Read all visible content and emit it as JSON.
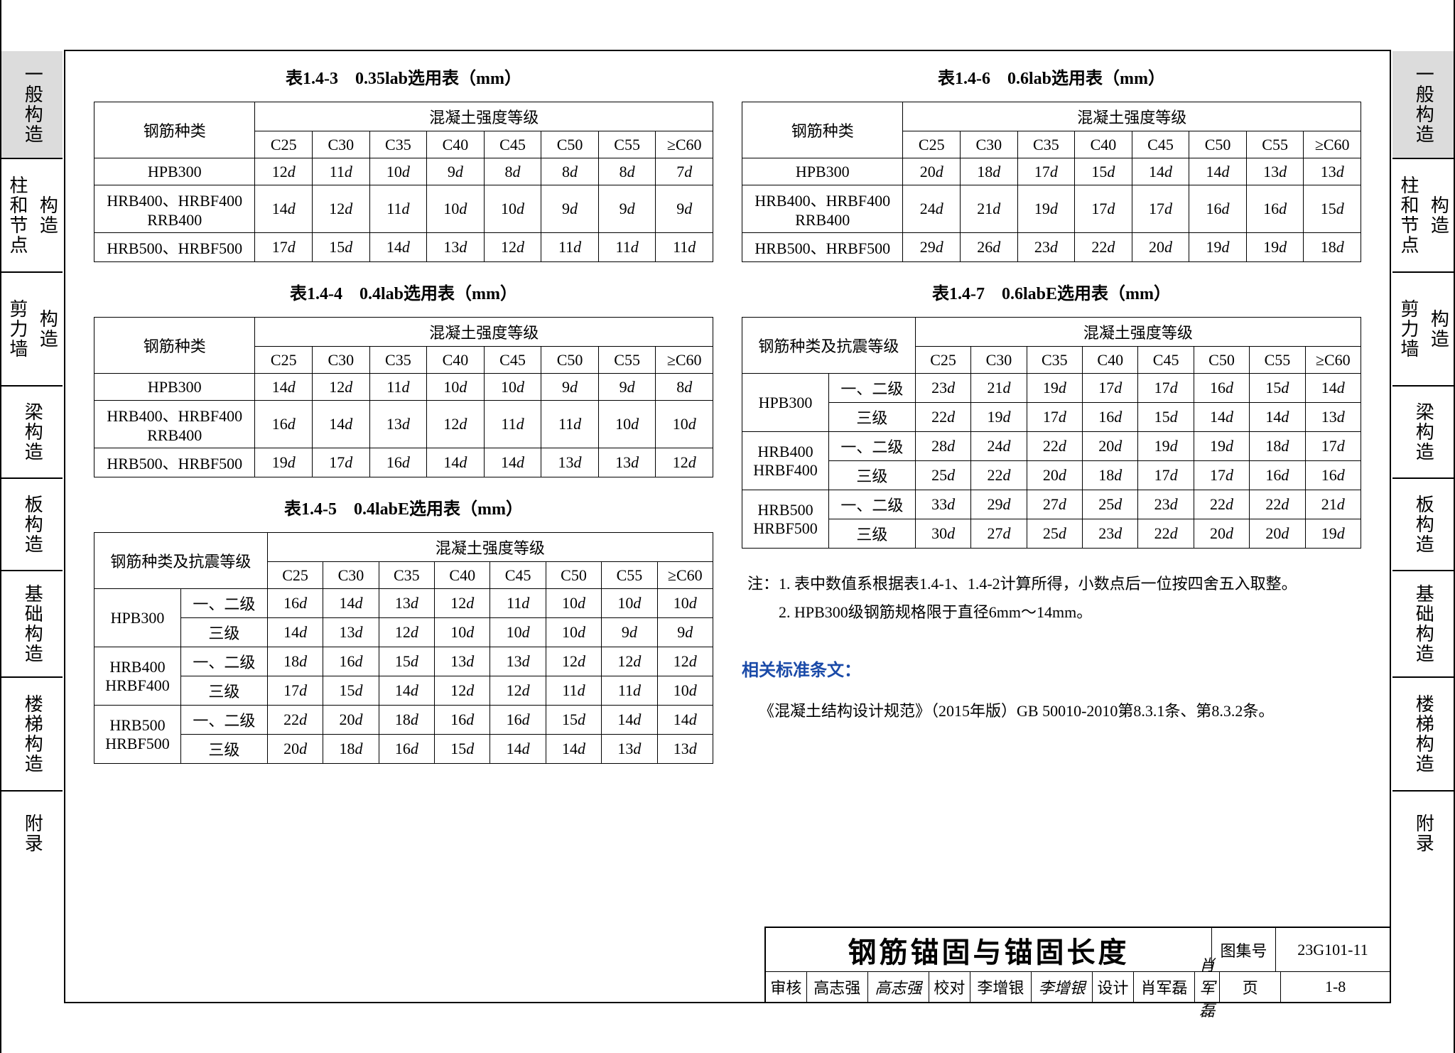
{
  "tabs_left": [
    "一般构造",
    "柱和节点 构造",
    "剪力墙 构造",
    "梁构造",
    "板构造",
    "基础构造",
    "楼梯构造",
    "附录"
  ],
  "tabs_right": [
    "一般构造",
    "柱和节点 构造",
    "剪力墙 构造",
    "梁构造",
    "板构造",
    "基础构造",
    "楼梯构造",
    "附录"
  ],
  "tab_heights": [
    150,
    160,
    160,
    130,
    130,
    150,
    160,
    120
  ],
  "concrete_grades": [
    "C25",
    "C30",
    "C35",
    "C40",
    "C45",
    "C50",
    "C55",
    "≥C60"
  ],
  "header_type": "钢筋种类",
  "header_type2": "钢筋种类及抗震等级",
  "header_grade": "混凝土强度等级",
  "captions": {
    "t143": "表1.4-3　0.35lab选用表（mm）",
    "t144": "表1.4-4　0.4lab选用表（mm）",
    "t145": "表1.4-5　0.4labE选用表（mm）",
    "t146": "表1.4-6　0.6lab选用表（mm）",
    "t147": "表1.4-7　0.6labE选用表（mm）"
  },
  "rebar_types_simple": [
    "HPB300",
    "HRB400、HRBF400\nRRB400",
    "HRB500、HRBF500"
  ],
  "seismic_levels": [
    "一、二级",
    "三级"
  ],
  "rebar_groups": [
    "HPB300",
    "HRB400\nHRBF400",
    "HRB500\nHRBF500"
  ],
  "t143": [
    [
      "12d",
      "11d",
      "10d",
      "9d",
      "8d",
      "8d",
      "8d",
      "7d"
    ],
    [
      "14d",
      "12d",
      "11d",
      "10d",
      "10d",
      "9d",
      "9d",
      "9d"
    ],
    [
      "17d",
      "15d",
      "14d",
      "13d",
      "12d",
      "11d",
      "11d",
      "11d"
    ]
  ],
  "t144": [
    [
      "14d",
      "12d",
      "11d",
      "10d",
      "10d",
      "9d",
      "9d",
      "8d"
    ],
    [
      "16d",
      "14d",
      "13d",
      "12d",
      "11d",
      "11d",
      "10d",
      "10d"
    ],
    [
      "19d",
      "17d",
      "16d",
      "14d",
      "14d",
      "13d",
      "13d",
      "12d"
    ]
  ],
  "t146": [
    [
      "20d",
      "18d",
      "17d",
      "15d",
      "14d",
      "14d",
      "13d",
      "13d"
    ],
    [
      "24d",
      "21d",
      "19d",
      "17d",
      "17d",
      "16d",
      "16d",
      "15d"
    ],
    [
      "29d",
      "26d",
      "23d",
      "22d",
      "20d",
      "19d",
      "19d",
      "18d"
    ]
  ],
  "t145": [
    [
      "16d",
      "14d",
      "13d",
      "12d",
      "11d",
      "10d",
      "10d",
      "10d"
    ],
    [
      "14d",
      "13d",
      "12d",
      "10d",
      "10d",
      "10d",
      "9d",
      "9d"
    ],
    [
      "18d",
      "16d",
      "15d",
      "13d",
      "13d",
      "12d",
      "12d",
      "12d"
    ],
    [
      "17d",
      "15d",
      "14d",
      "12d",
      "12d",
      "11d",
      "11d",
      "10d"
    ],
    [
      "22d",
      "20d",
      "18d",
      "16d",
      "16d",
      "15d",
      "14d",
      "14d"
    ],
    [
      "20d",
      "18d",
      "16d",
      "15d",
      "14d",
      "14d",
      "13d",
      "13d"
    ]
  ],
  "t147": [
    [
      "23d",
      "21d",
      "19d",
      "17d",
      "17d",
      "16d",
      "15d",
      "14d"
    ],
    [
      "22d",
      "19d",
      "17d",
      "16d",
      "15d",
      "14d",
      "14d",
      "13d"
    ],
    [
      "28d",
      "24d",
      "22d",
      "20d",
      "19d",
      "19d",
      "18d",
      "17d"
    ],
    [
      "25d",
      "22d",
      "20d",
      "18d",
      "17d",
      "17d",
      "16d",
      "16d"
    ],
    [
      "33d",
      "29d",
      "27d",
      "25d",
      "23d",
      "22d",
      "22d",
      "21d"
    ],
    [
      "30d",
      "27d",
      "25d",
      "23d",
      "22d",
      "20d",
      "20d",
      "19d"
    ]
  ],
  "notes": [
    "注：1. 表中数值系根据表1.4-1、1.4-2计算所得，小数点后一位按四舍五入取整。",
    "　　2. HPB300级钢筋规格限于直径6mm～14mm。"
  ],
  "refs_title": "相关标准条文：",
  "refs_body": "《混凝土结构设计规范》（2015年版）GB 50010-2010第8.3.1条、第8.3.2条。",
  "titleblock": {
    "title": "钢筋锚固与锚固长度",
    "set_label": "图集号",
    "set_value": "23G101-11",
    "page_label": "页",
    "page_value": "1-8",
    "review_label": "审核",
    "review_name": "高志强",
    "review_sig": "高志强",
    "check_label": "校对",
    "check_name": "李增银",
    "check_sig": "李增银",
    "design_label": "设计",
    "design_name": "肖军磊",
    "design_sig": "肖军磊"
  }
}
